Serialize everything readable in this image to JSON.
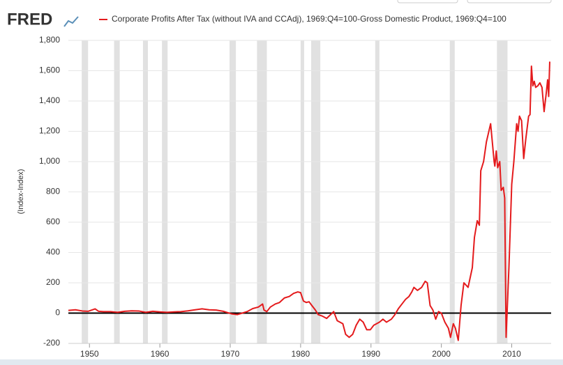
{
  "logo": "FRED",
  "chart_data": {
    "type": "line",
    "y_label": "(Index-Index)",
    "series": [
      {
        "name": "Corporate Profits After Tax (without IVA and CCAdj), 1969:Q4=100-Gross Domestic Product, 1969:Q4=100",
        "color": "#e41a1c",
        "x": [
          1947.0,
          1948.0,
          1949.0,
          1949.8,
          1950.3,
          1950.8,
          1951.3,
          1952.0,
          1953.0,
          1954.0,
          1955.0,
          1956.0,
          1957.0,
          1958.0,
          1959.0,
          1960.0,
          1961.0,
          1962.0,
          1963.0,
          1964.0,
          1965.0,
          1966.0,
          1967.0,
          1968.0,
          1969.0,
          1970.2,
          1971.0,
          1971.7,
          1972.4,
          1973.2,
          1974.0,
          1974.6,
          1974.8,
          1975.2,
          1975.7,
          1976.4,
          1977.0,
          1977.7,
          1978.4,
          1979.0,
          1979.6,
          1980.0,
          1980.4,
          1980.8,
          1981.2,
          1981.6,
          1982.1,
          1982.5,
          1983.1,
          1983.7,
          1984.7,
          1985.2,
          1986.0,
          1986.4,
          1986.9,
          1987.4,
          1987.9,
          1988.4,
          1988.9,
          1989.4,
          1989.9,
          1990.4,
          1991.2,
          1991.7,
          1992.2,
          1992.9,
          1993.4,
          1993.9,
          1994.4,
          1994.9,
          1995.4,
          1995.8,
          1996.1,
          1996.6,
          1997.2,
          1997.7,
          1998.0,
          1998.4,
          1998.8,
          1999.2,
          1999.6,
          2000.0,
          2000.5,
          2001.0,
          2001.3,
          2001.7,
          2002.0,
          2002.4,
          2002.8,
          2003.2,
          2003.8,
          2004.4,
          2004.7,
          2005.1,
          2005.4,
          2005.6,
          2006.0,
          2006.4,
          2007.0,
          2007.5,
          2007.6,
          2007.8,
          2008.0,
          2008.3,
          2008.5,
          2008.8,
          2009.0,
          2009.2,
          2009.6,
          2010.0,
          2010.3,
          2010.7,
          2010.9,
          2011.1,
          2011.4,
          2011.7,
          2012.0,
          2012.4,
          2012.6,
          2012.8,
          2013.0,
          2013.2,
          2013.4,
          2013.7,
          2014.0,
          2014.3,
          2014.6,
          2014.9,
          2015.1,
          2015.25,
          2015.4
        ],
        "values": [
          18,
          22,
          14,
          12,
          20,
          28,
          12,
          10,
          10,
          5,
          12,
          15,
          14,
          5,
          12,
          8,
          5,
          8,
          10,
          15,
          22,
          28,
          22,
          20,
          12,
          -5,
          -10,
          0,
          10,
          30,
          40,
          60,
          20,
          10,
          40,
          60,
          70,
          100,
          110,
          130,
          140,
          135,
          80,
          70,
          75,
          50,
          20,
          -10,
          -20,
          -35,
          10,
          -50,
          -70,
          -140,
          -160,
          -140,
          -80,
          -40,
          -60,
          -110,
          -110,
          -80,
          -60,
          -40,
          -60,
          -40,
          -10,
          30,
          60,
          90,
          110,
          140,
          170,
          150,
          170,
          210,
          200,
          50,
          20,
          -40,
          10,
          0,
          -60,
          -100,
          -160,
          -70,
          -100,
          -180,
          50,
          200,
          170,
          300,
          500,
          610,
          580,
          940,
          1000,
          1130,
          1250,
          1000,
          970,
          1070,
          960,
          1000,
          810,
          830,
          760,
          -160,
          300,
          850,
          1000,
          1250,
          1200,
          1300,
          1270,
          1020,
          1150,
          1300,
          1310,
          1630,
          1500,
          1530,
          1490,
          1500,
          1520,
          1490,
          1330,
          1450,
          1540,
          1430,
          1660
        ]
      }
    ],
    "recessions": [
      [
        1948.9,
        1949.8
      ],
      [
        1953.5,
        1954.3
      ],
      [
        1957.6,
        1958.3
      ],
      [
        1960.3,
        1961.1
      ],
      [
        1969.9,
        1970.8
      ],
      [
        1973.8,
        1975.2
      ],
      [
        1980.0,
        1980.5
      ],
      [
        1981.5,
        1982.8
      ],
      [
        1990.6,
        1991.2
      ],
      [
        2001.2,
        2001.9
      ],
      [
        2007.9,
        2009.4
      ]
    ],
    "recession_color": "#e1e1e1",
    "xlim": [
      1947,
      2015.6
    ],
    "xticks": [
      1950,
      1960,
      1970,
      1980,
      1990,
      2000,
      2010
    ],
    "ylim": [
      -200,
      1800
    ],
    "yticks": [
      -200,
      0,
      200,
      400,
      600,
      800,
      {
        "value": 1000,
        "label": "1,000"
      },
      {
        "value": 1200,
        "label": "1,200"
      },
      {
        "value": 1400,
        "label": "1,400"
      },
      {
        "value": 1600,
        "label": "1,600"
      },
      {
        "value": 1800,
        "label": "1,800"
      }
    ],
    "grid": true,
    "zero_line": true
  }
}
